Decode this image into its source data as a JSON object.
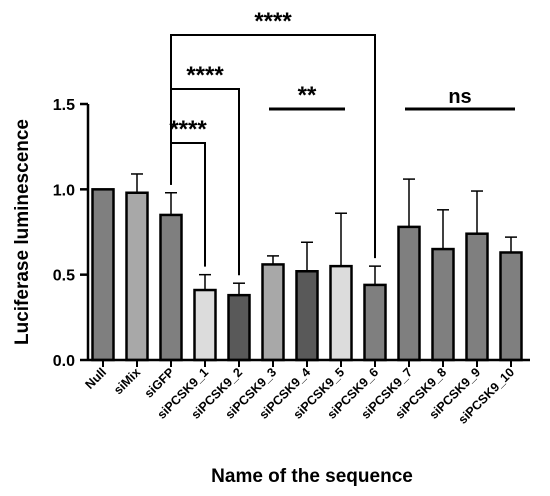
{
  "chart_data": {
    "type": "bar",
    "xlabel": "Name of the sequence",
    "ylabel": "Luciferase luminescence",
    "ylim": [
      0,
      1.5
    ],
    "yticks": [
      "0.0",
      "0.5",
      "1.0",
      "1.5"
    ],
    "categories": [
      "Null",
      "siMix",
      "siGFP",
      "siPCSK9_1",
      "siPCSK9_2",
      "siPCSK9_3",
      "siPCSK9_4",
      "siPCSK9_5",
      "siPCSK9_6",
      "siPCSK9_7",
      "siPCSK9_8",
      "siPCSK9_9",
      "siPCSK9_10"
    ],
    "values": [
      1.0,
      0.98,
      0.85,
      0.41,
      0.38,
      0.56,
      0.52,
      0.55,
      0.44,
      0.78,
      0.65,
      0.74,
      0.63
    ],
    "errors": [
      0.0,
      0.11,
      0.13,
      0.09,
      0.07,
      0.05,
      0.17,
      0.31,
      0.11,
      0.28,
      0.23,
      0.25,
      0.09
    ],
    "bar_colors": [
      "#7f7f7f",
      "#a8a8a8",
      "#7f7f7f",
      "#dcdcdc",
      "#595959",
      "#a8a8a8",
      "#595959",
      "#dcdcdc",
      "#7f7f7f",
      "#7f7f7f",
      "#7f7f7f",
      "#7f7f7f",
      "#7f7f7f"
    ],
    "annotations": [
      {
        "type": "bracket",
        "from": 2,
        "to": 3,
        "label": "****"
      },
      {
        "type": "bracket",
        "from": 2,
        "to": 4,
        "label": "****"
      },
      {
        "type": "bracket",
        "from": 2,
        "to": 8,
        "label": "****"
      },
      {
        "type": "line",
        "from": 5,
        "to": 7,
        "label": "**"
      },
      {
        "type": "line",
        "from": 9,
        "to": 12,
        "label": "ns"
      }
    ]
  }
}
